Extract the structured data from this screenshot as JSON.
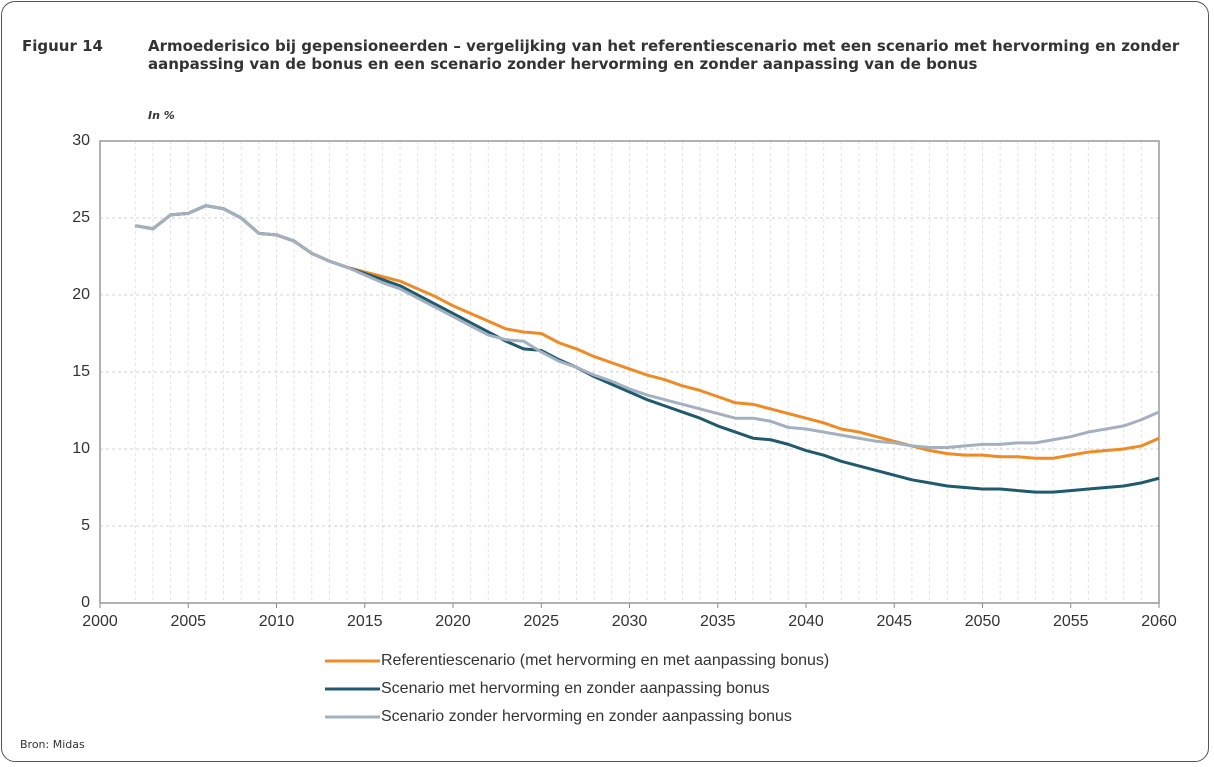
{
  "chart_data": {
    "type": "line",
    "figure_label": "Figuur 14",
    "title": "Armoederisico bij gepensioneerden – vergelijking van het referentiescenario met een scenario met hervorming en zonder aanpassing van de bonus en een scenario zonder hervorming en zonder aanpassing van de bonus",
    "subtitle": "In %",
    "source": "Bron: Midas",
    "x": [
      2002,
      2003,
      2004,
      2005,
      2006,
      2007,
      2008,
      2009,
      2010,
      2011,
      2012,
      2013,
      2014,
      2015,
      2016,
      2017,
      2018,
      2019,
      2020,
      2021,
      2022,
      2023,
      2024,
      2025,
      2026,
      2027,
      2028,
      2029,
      2030,
      2031,
      2032,
      2033,
      2034,
      2035,
      2036,
      2037,
      2038,
      2039,
      2040,
      2041,
      2042,
      2043,
      2044,
      2045,
      2046,
      2047,
      2048,
      2049,
      2050,
      2051,
      2052,
      2053,
      2054,
      2055,
      2056,
      2057,
      2058,
      2059,
      2060
    ],
    "series": [
      {
        "name": "Referentiescenario (met hervorming en met aanpassing bonus)",
        "color": "#f08a24",
        "values": [
          24.5,
          24.3,
          25.2,
          25.3,
          25.8,
          25.6,
          25.0,
          24.0,
          23.9,
          23.5,
          22.7,
          22.2,
          21.8,
          21.5,
          21.2,
          20.9,
          20.4,
          19.9,
          19.3,
          18.8,
          18.3,
          17.8,
          17.6,
          17.5,
          16.9,
          16.5,
          16.0,
          15.6,
          15.2,
          14.8,
          14.5,
          14.1,
          13.8,
          13.4,
          13.0,
          12.9,
          12.6,
          12.3,
          12.0,
          11.7,
          11.3,
          11.1,
          10.8,
          10.5,
          10.2,
          9.9,
          9.7,
          9.6,
          9.6,
          9.5,
          9.5,
          9.4,
          9.4,
          9.6,
          9.8,
          9.9,
          10.0,
          10.2,
          10.7
        ]
      },
      {
        "name": "Scenario met hervorming en zonder aanpassing bonus",
        "color": "#1f5a6e",
        "values": [
          24.5,
          24.3,
          25.2,
          25.3,
          25.8,
          25.6,
          25.0,
          24.0,
          23.9,
          23.5,
          22.7,
          22.2,
          21.8,
          21.4,
          21.0,
          20.6,
          20.0,
          19.4,
          18.8,
          18.2,
          17.6,
          17.0,
          16.5,
          16.4,
          15.8,
          15.3,
          14.7,
          14.2,
          13.7,
          13.2,
          12.8,
          12.4,
          12.0,
          11.5,
          11.1,
          10.7,
          10.6,
          10.3,
          9.9,
          9.6,
          9.2,
          8.9,
          8.6,
          8.3,
          8.0,
          7.8,
          7.6,
          7.5,
          7.4,
          7.4,
          7.3,
          7.2,
          7.2,
          7.3,
          7.4,
          7.5,
          7.6,
          7.8,
          8.1
        ]
      },
      {
        "name": "Scenario zonder hervorming en zonder aanpassing bonus",
        "color": "#a3b0c0",
        "values": [
          24.5,
          24.3,
          25.2,
          25.3,
          25.8,
          25.6,
          25.0,
          24.0,
          23.9,
          23.5,
          22.7,
          22.2,
          21.8,
          21.3,
          20.8,
          20.4,
          19.8,
          19.2,
          18.6,
          18.0,
          17.4,
          17.1,
          17.0,
          16.3,
          15.7,
          15.3,
          14.8,
          14.4,
          13.9,
          13.5,
          13.2,
          12.9,
          12.6,
          12.3,
          12.0,
          12.0,
          11.8,
          11.4,
          11.3,
          11.1,
          10.9,
          10.7,
          10.5,
          10.4,
          10.2,
          10.1,
          10.1,
          10.2,
          10.3,
          10.3,
          10.4,
          10.4,
          10.6,
          10.8,
          11.1,
          11.3,
          11.5,
          11.9,
          12.4
        ]
      }
    ],
    "xlim": [
      2000,
      2060
    ],
    "xticks": [
      2000,
      2005,
      2010,
      2015,
      2020,
      2025,
      2030,
      2035,
      2040,
      2045,
      2050,
      2055,
      2060
    ],
    "ylim": [
      0,
      30
    ],
    "yticks": [
      0,
      5,
      10,
      15,
      20,
      25,
      30
    ],
    "grid": true
  }
}
